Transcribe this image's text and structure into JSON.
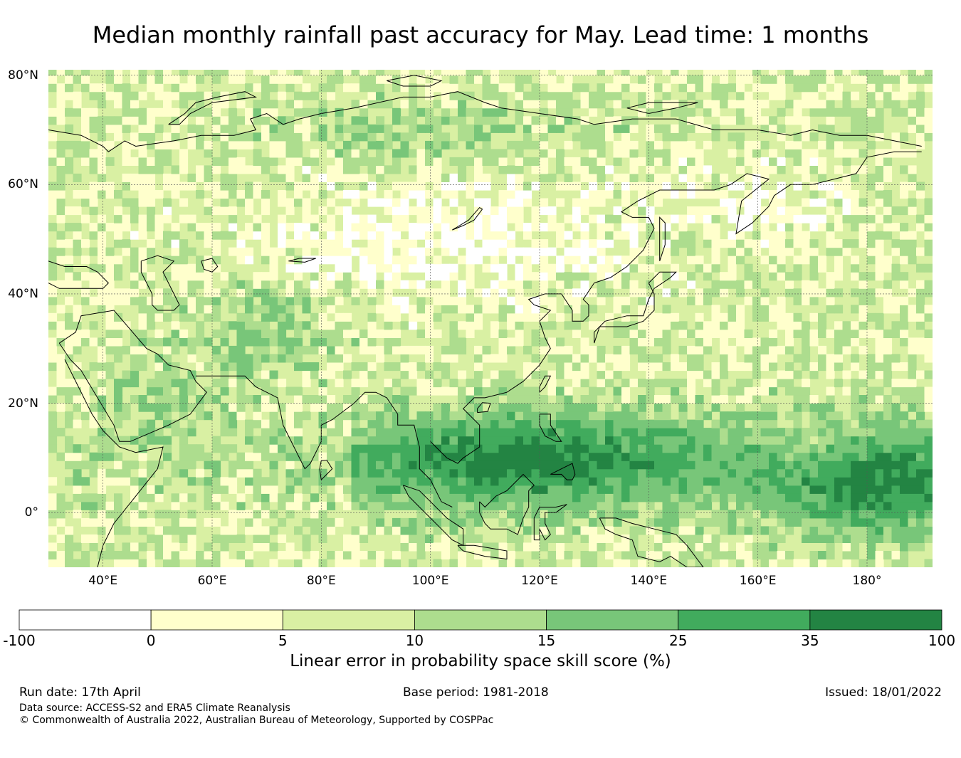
{
  "title": "Median monthly rainfall past accuracy for May. Lead time: 1 months",
  "map": {
    "lon_range": [
      30,
      192
    ],
    "lat_range": [
      -10,
      81
    ],
    "latitude_ticks": [
      {
        "lat": 80,
        "label": "80°N"
      },
      {
        "lat": 60,
        "label": "60°N"
      },
      {
        "lat": 40,
        "label": "40°N"
      },
      {
        "lat": 20,
        "label": "20°N"
      },
      {
        "lat": 0,
        "label": "0°"
      }
    ],
    "longitude_ticks": [
      {
        "lon": 40,
        "label": "40°E"
      },
      {
        "lon": 60,
        "label": "60°E"
      },
      {
        "lon": 80,
        "label": "80°E"
      },
      {
        "lon": 100,
        "label": "100°E"
      },
      {
        "lon": 120,
        "label": "120°E"
      },
      {
        "lon": 140,
        "label": "140°E"
      },
      {
        "lon": 160,
        "label": "160°E"
      },
      {
        "lon": 180,
        "label": "180°"
      }
    ],
    "gridlines": true
  },
  "colorbar": {
    "title": "Linear error in probability space skill score (%)",
    "bounds": [
      "-100",
      "0",
      "5",
      "10",
      "15",
      "25",
      "35",
      "100"
    ],
    "colors": [
      "#ffffff",
      "#ffffcc",
      "#d9f0a3",
      "#addd8e",
      "#78c679",
      "#41ab5d",
      "#238443"
    ]
  },
  "footer": {
    "run_date": "Run date: 17th April",
    "base_period": "Base period: 1981-2018",
    "issued": "Issued: 18/01/2022",
    "data_source": "Data source: ACCESS-S2 and ERA5 Climate Reanalysis",
    "copyright": "© Commonwealth of Australia 2022, Australian Bureau of Meteorology, Supported by COSPPac"
  }
}
